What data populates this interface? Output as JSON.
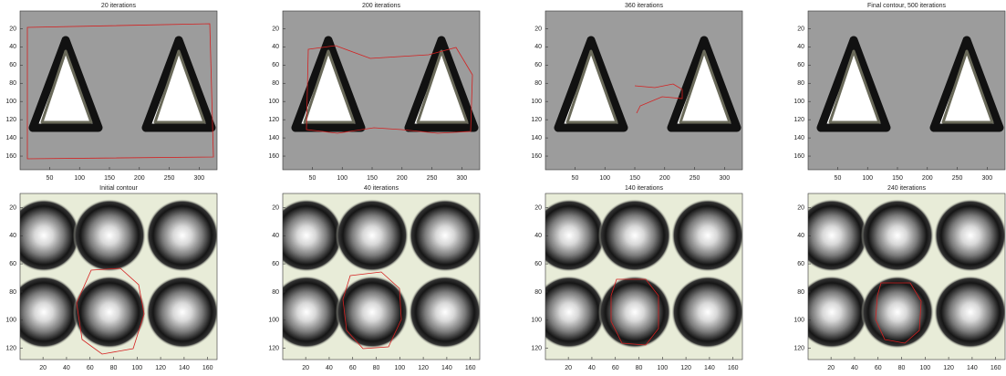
{
  "panels": [
    {
      "title": "20 iterations",
      "xlim": [
        0.5,
        330
      ],
      "ylim": [
        0.5,
        175
      ],
      "xticks": [
        50,
        100,
        150,
        200,
        250,
        300
      ],
      "yticks": [
        20,
        40,
        60,
        80,
        100,
        120,
        140,
        160
      ]
    },
    {
      "title": "200 iterations",
      "xlim": [
        0.5,
        330
      ],
      "ylim": [
        0.5,
        175
      ],
      "xticks": [
        50,
        100,
        150,
        200,
        250,
        300
      ],
      "yticks": [
        20,
        40,
        60,
        80,
        100,
        120,
        140,
        160
      ]
    },
    {
      "title": "360 iterations",
      "xlim": [
        0.5,
        330
      ],
      "ylim": [
        0.5,
        175
      ],
      "xticks": [
        50,
        100,
        150,
        200,
        250,
        300
      ],
      "yticks": [
        20,
        40,
        60,
        80,
        100,
        120,
        140,
        160
      ]
    },
    {
      "title": "Final contour, 500 iterations",
      "xlim": [
        0.5,
        330
      ],
      "ylim": [
        0.5,
        175
      ],
      "xticks": [
        50,
        100,
        150,
        200,
        250,
        300
      ],
      "yticks": [
        20,
        40,
        60,
        80,
        100,
        120,
        140,
        160
      ]
    },
    {
      "title": "Initial contour",
      "xlim": [
        0.5,
        168
      ],
      "ylim": [
        10,
        128
      ],
      "xticks": [
        20,
        40,
        60,
        80,
        100,
        120,
        140,
        160
      ],
      "yticks": [
        20,
        40,
        60,
        80,
        100,
        120
      ]
    },
    {
      "title": "40 iterations",
      "xlim": [
        0.5,
        168
      ],
      "ylim": [
        10,
        128
      ],
      "xticks": [
        20,
        40,
        60,
        80,
        100,
        120,
        140,
        160
      ],
      "yticks": [
        20,
        40,
        60,
        80,
        100,
        120
      ]
    },
    {
      "title": "140 iterations",
      "xlim": [
        0.5,
        168
      ],
      "ylim": [
        10,
        128
      ],
      "xticks": [
        20,
        40,
        60,
        80,
        100,
        120,
        140,
        160
      ],
      "yticks": [
        20,
        40,
        60,
        80,
        100,
        120
      ]
    },
    {
      "title": "240 iterations",
      "xlim": [
        0.5,
        168
      ],
      "ylim": [
        10,
        128
      ],
      "xticks": [
        20,
        40,
        60,
        80,
        100,
        120,
        140,
        160
      ],
      "yticks": [
        20,
        40,
        60,
        80,
        100,
        120
      ]
    }
  ]
}
